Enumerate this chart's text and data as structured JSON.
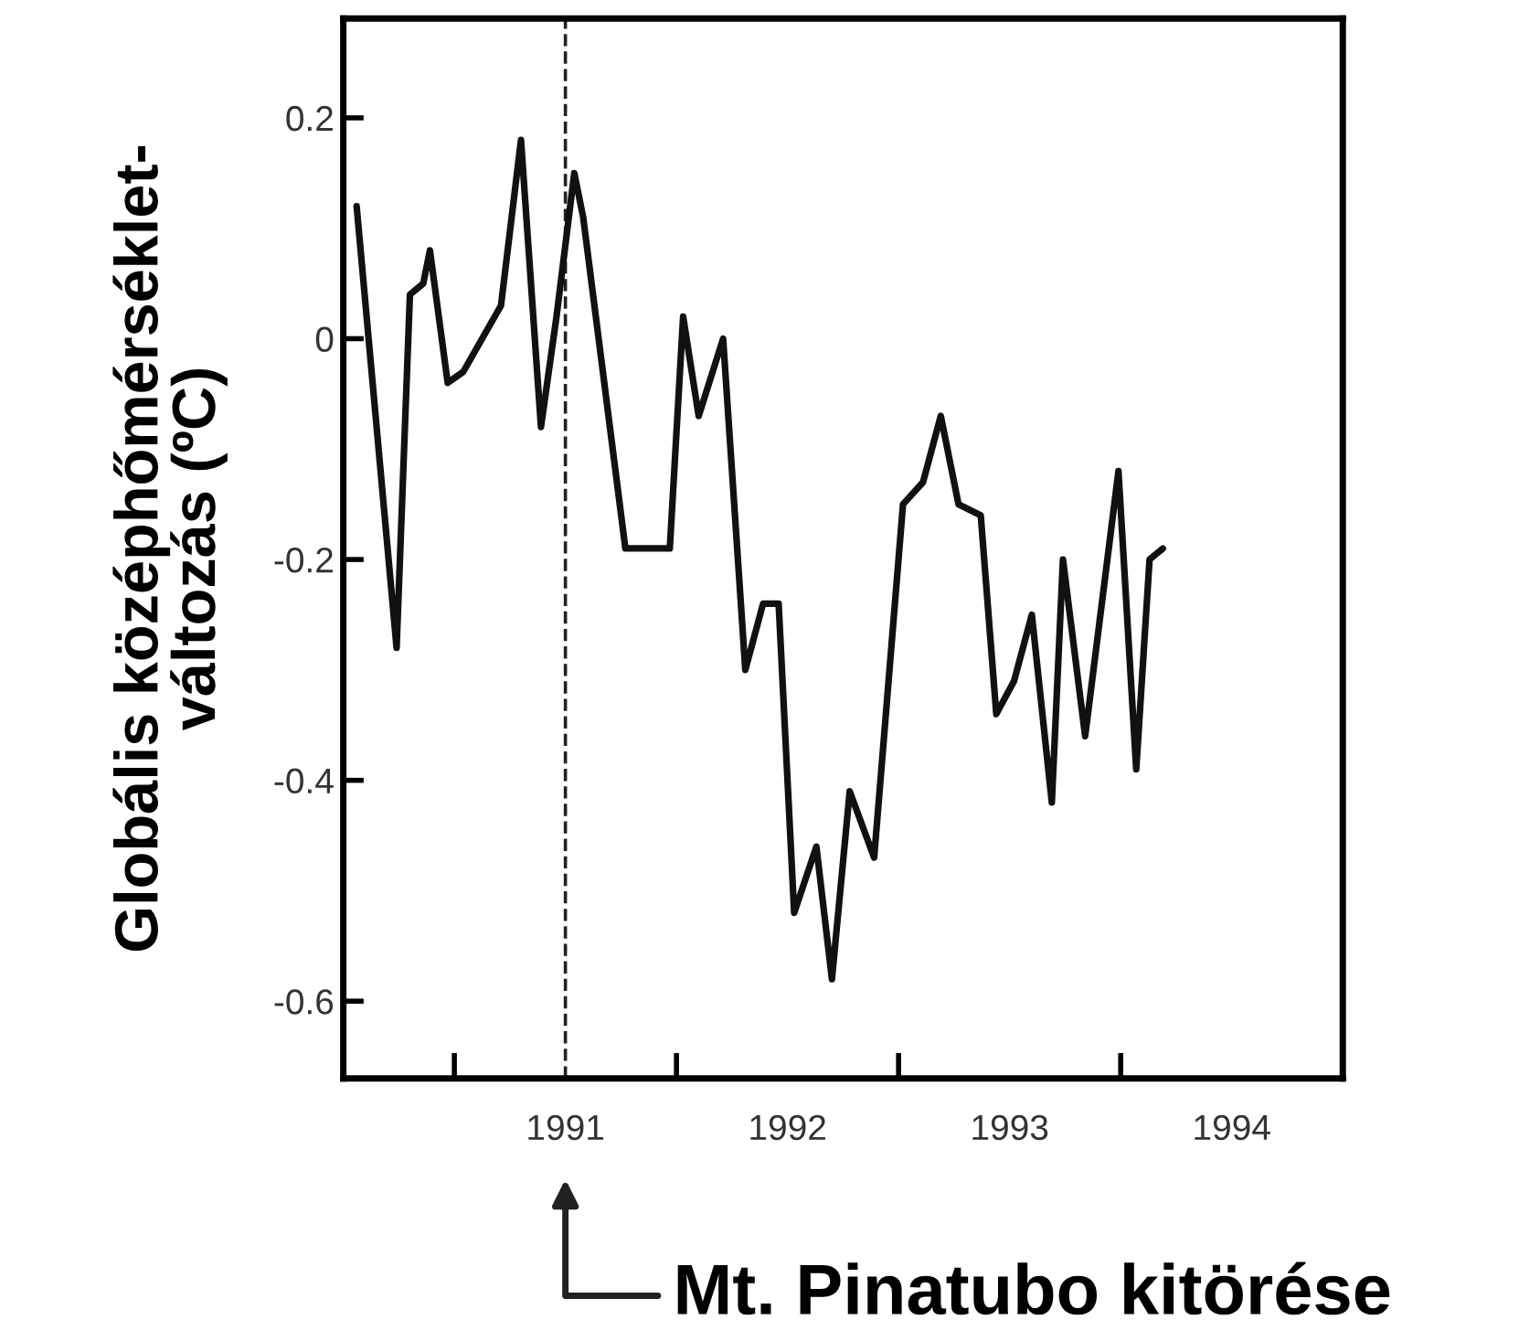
{
  "chart_data": {
    "type": "line",
    "ylabel": "Globális középhőmérséklet-\nváltozás (ºC)",
    "x": [
      1990.06,
      1990.24,
      1990.3,
      1990.36,
      1990.39,
      1990.47,
      1990.54,
      1990.71,
      1990.8,
      1990.89,
      1990.96,
      1991.04,
      1991.08,
      1991.27,
      1991.47,
      1991.53,
      1991.6,
      1991.71,
      1991.81,
      1991.89,
      1991.96,
      1992.03,
      1992.13,
      1992.2,
      1992.28,
      1992.39,
      1992.52,
      1992.61,
      1992.69,
      1992.77,
      1992.87,
      1992.94,
      1993.02,
      1993.1,
      1993.19,
      1993.24,
      1993.34,
      1993.49,
      1993.57,
      1993.63,
      1993.69
    ],
    "series": [
      {
        "color": "#111111",
        "values": [
          0.12,
          -0.28,
          0.04,
          0.05,
          0.08,
          -0.04,
          -0.03,
          0.03,
          0.18,
          -0.08,
          0.02,
          0.15,
          0.11,
          -0.19,
          -0.19,
          0.02,
          -0.07,
          0.0,
          -0.3,
          -0.24,
          -0.24,
          -0.52,
          -0.46,
          -0.58,
          -0.41,
          -0.47,
          -0.15,
          -0.13,
          -0.07,
          -0.15,
          -0.16,
          -0.34,
          -0.31,
          -0.25,
          -0.42,
          -0.2,
          -0.36,
          -0.12,
          -0.39,
          -0.2,
          -0.19
        ]
      }
    ],
    "xlim": [
      1990.0,
      1994.5
    ],
    "xticks": [
      {
        "value": 1990.5,
        "label": null
      },
      1991,
      {
        "value": 1991.5,
        "label": null
      },
      1992,
      {
        "value": 1992.5,
        "label": null
      },
      1993,
      {
        "value": 1993.5,
        "label": null
      },
      1994
    ],
    "ylim": [
      -0.67,
      0.29
    ],
    "yticks": [
      {
        "value": -0.6,
        "label": "-0.6"
      },
      {
        "value": -0.4,
        "label": "-0.4"
      },
      {
        "value": -0.2,
        "label": "-0.2"
      },
      0,
      {
        "value": 0.2,
        "label": "0.2"
      }
    ],
    "ref_lines": [
      {
        "axis": "x",
        "value": 1991,
        "label": null,
        "color": "#222222",
        "line_style": "dashed"
      }
    ],
    "annotations": [
      "Mt. Pinatubo kitörése"
    ],
    "grid": false,
    "legend": false,
    "marker": "none",
    "line_style": "solid"
  }
}
